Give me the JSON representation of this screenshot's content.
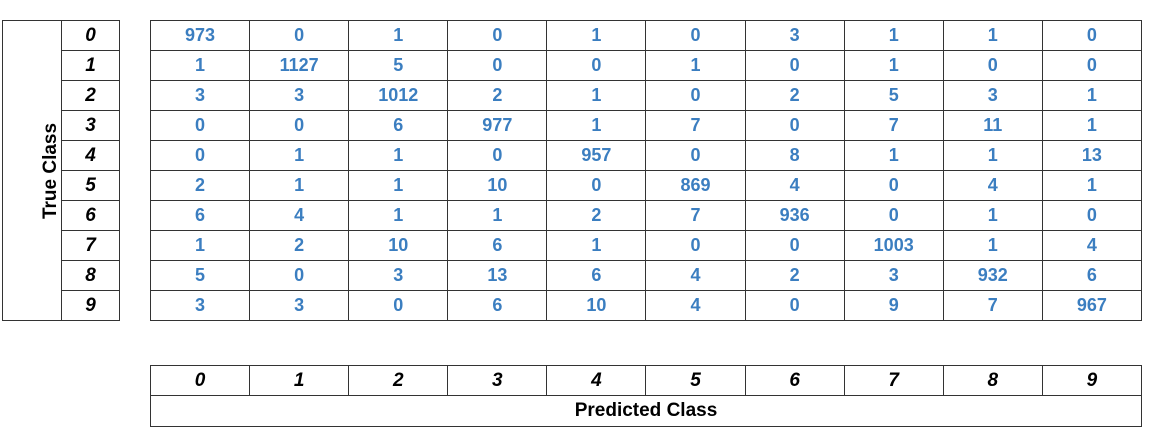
{
  "chart_data": {
    "type": "table",
    "title": "",
    "ylabel": "True Class",
    "xlabel": "Predicted Class",
    "row_labels": [
      "0",
      "1",
      "2",
      "3",
      "4",
      "5",
      "6",
      "7",
      "8",
      "9"
    ],
    "col_labels": [
      "0",
      "1",
      "2",
      "3",
      "4",
      "5",
      "6",
      "7",
      "8",
      "9"
    ],
    "values": [
      [
        973,
        0,
        1,
        0,
        1,
        0,
        3,
        1,
        1,
        0
      ],
      [
        1,
        1127,
        5,
        0,
        0,
        1,
        0,
        1,
        0,
        0
      ],
      [
        3,
        3,
        1012,
        2,
        1,
        0,
        2,
        5,
        3,
        1
      ],
      [
        0,
        0,
        6,
        977,
        1,
        7,
        0,
        7,
        11,
        1
      ],
      [
        0,
        1,
        1,
        0,
        957,
        0,
        8,
        1,
        1,
        13
      ],
      [
        2,
        1,
        1,
        10,
        0,
        869,
        4,
        0,
        4,
        1
      ],
      [
        6,
        4,
        1,
        1,
        2,
        7,
        936,
        0,
        1,
        0
      ],
      [
        1,
        2,
        10,
        6,
        1,
        0,
        0,
        1003,
        1,
        4
      ],
      [
        5,
        0,
        3,
        13,
        6,
        4,
        2,
        3,
        932,
        6
      ],
      [
        3,
        3,
        0,
        6,
        10,
        4,
        0,
        9,
        7,
        967
      ]
    ],
    "value_color": "#3b7ec0",
    "label_color": "#000000"
  }
}
